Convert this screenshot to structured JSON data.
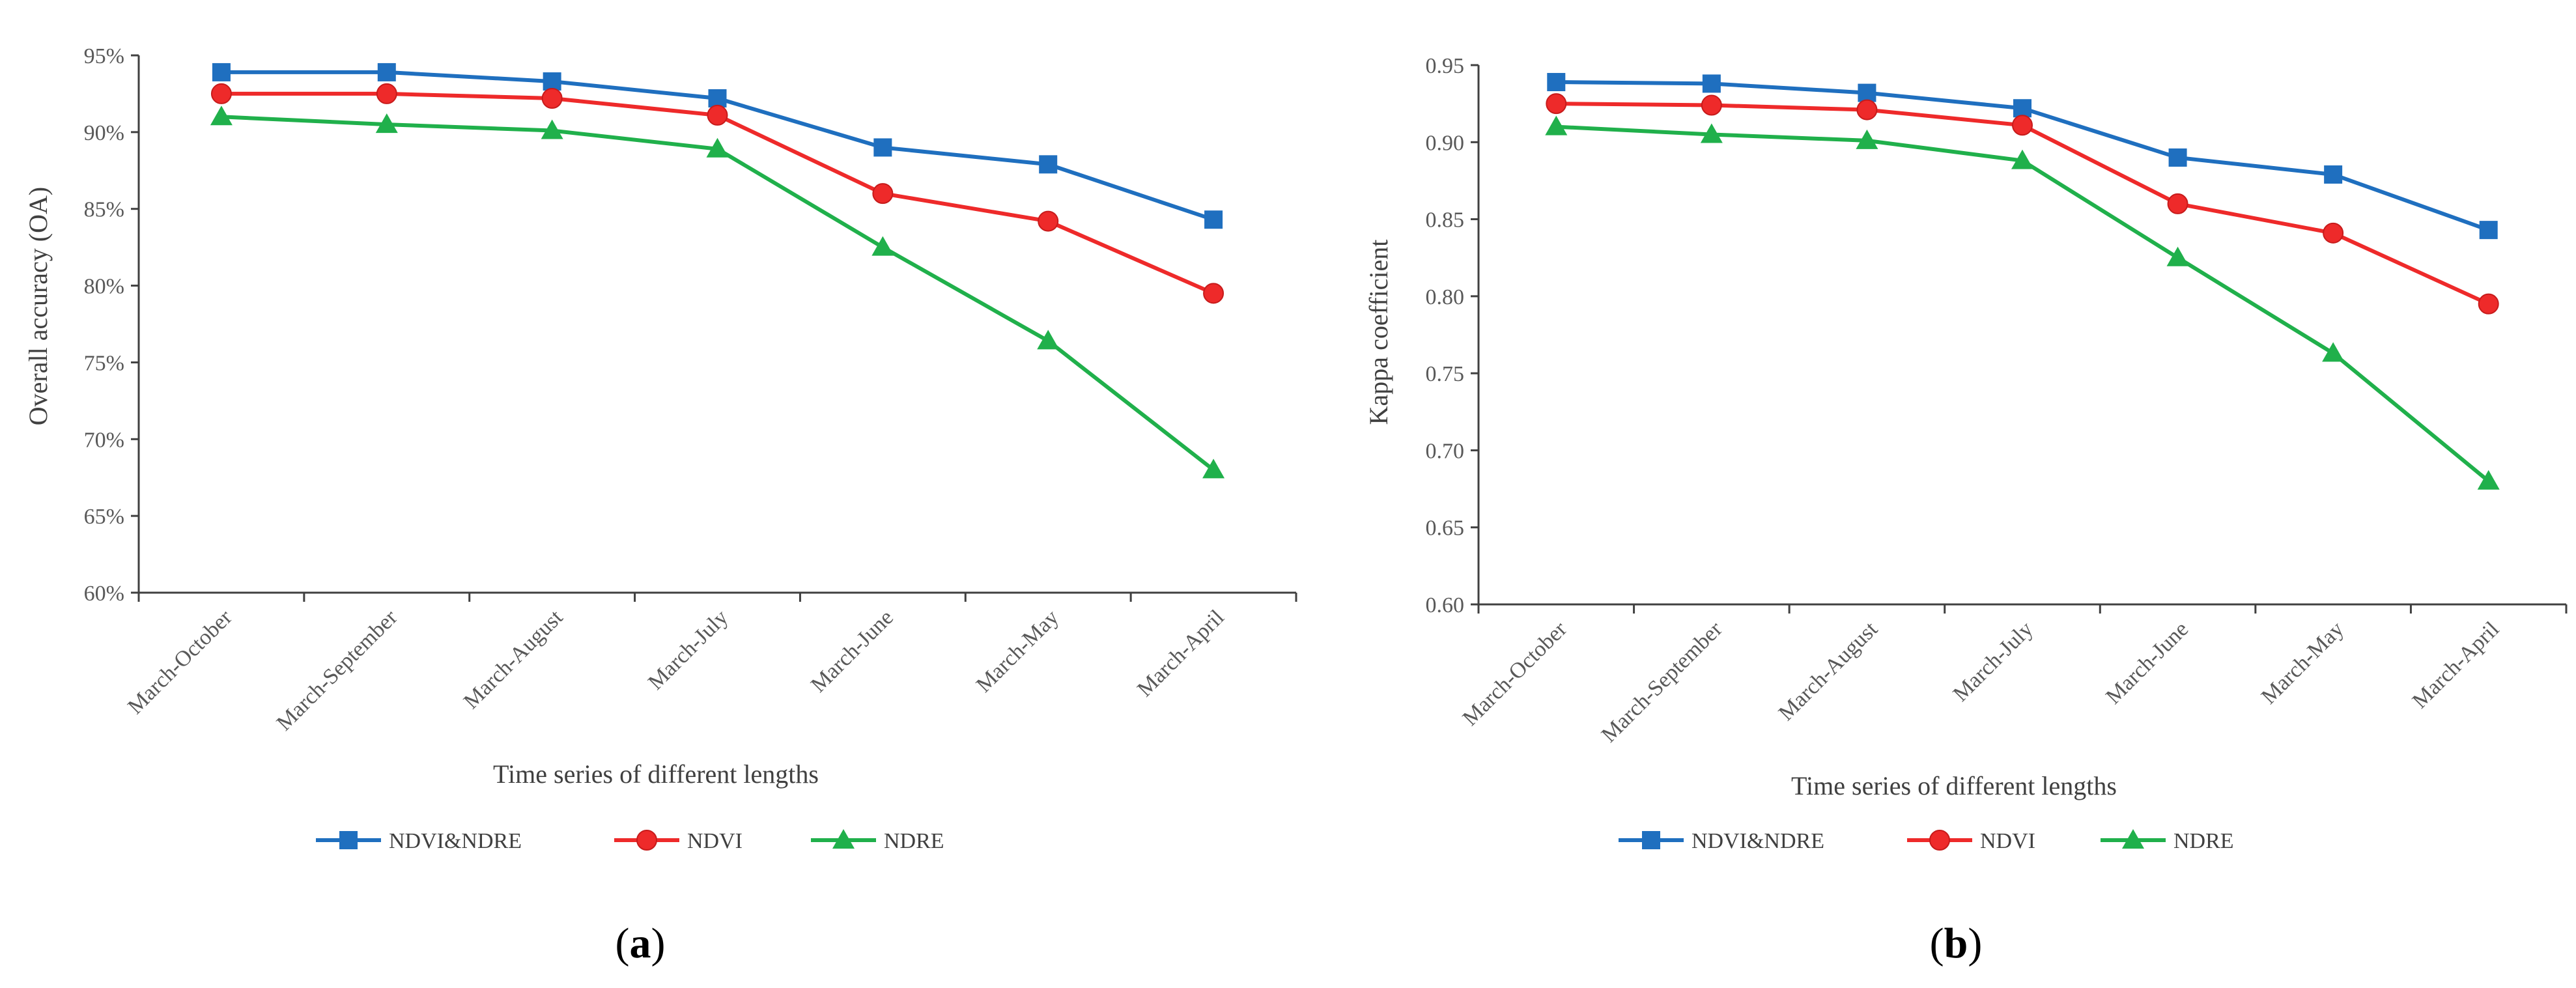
{
  "chart_data": [
    {
      "panel": "a",
      "type": "line",
      "categories": [
        "March-October",
        "March-September",
        "March-August",
        "March-July",
        "March-June",
        "March-May",
        "March-April"
      ],
      "xlabel": "Time series of different lengths",
      "ylabel": "Overall accuracy (OA)",
      "ylim": [
        60,
        95
      ],
      "yticks": [
        60,
        65,
        70,
        75,
        80,
        85,
        90,
        95
      ],
      "ytick_format": "percent",
      "grid": false,
      "legend_position": "bottom",
      "series": [
        {
          "name": "NDVI&NDRE",
          "color": "#1F6FBF",
          "marker": "square",
          "values": [
            93.9,
            93.9,
            93.3,
            92.2,
            89.0,
            87.9,
            84.3
          ]
        },
        {
          "name": "NDVI",
          "color": "#EE2A2A",
          "marker": "circle",
          "values": [
            92.5,
            92.5,
            92.2,
            91.1,
            86.0,
            84.2,
            79.5
          ]
        },
        {
          "name": "NDRE",
          "color": "#20B04B",
          "marker": "triangle",
          "values": [
            91.0,
            90.5,
            90.1,
            88.9,
            82.5,
            76.4,
            68.0
          ]
        }
      ]
    },
    {
      "panel": "b",
      "type": "line",
      "categories": [
        "March-October",
        "March-September",
        "March-August",
        "March-July",
        "March-June",
        "March-May",
        "March-April"
      ],
      "xlabel": "Time series of different lengths",
      "ylabel": "Kappa coefficient",
      "ylim": [
        0.6,
        0.95
      ],
      "yticks": [
        0.6,
        0.65,
        0.7,
        0.75,
        0.8,
        0.85,
        0.9,
        0.95
      ],
      "ytick_format": "decimal2",
      "grid": false,
      "legend_position": "bottom",
      "series": [
        {
          "name": "NDVI&NDRE",
          "color": "#1F6FBF",
          "marker": "square",
          "values": [
            0.939,
            0.938,
            0.932,
            0.922,
            0.89,
            0.879,
            0.843
          ]
        },
        {
          "name": "NDVI",
          "color": "#EE2A2A",
          "marker": "circle",
          "values": [
            0.925,
            0.924,
            0.921,
            0.911,
            0.86,
            0.841,
            0.795
          ]
        },
        {
          "name": "NDRE",
          "color": "#20B04B",
          "marker": "triangle",
          "values": [
            0.91,
            0.905,
            0.901,
            0.888,
            0.825,
            0.763,
            0.68
          ]
        }
      ]
    }
  ],
  "panel_labels": [
    {
      "open": "(",
      "letter": "a",
      "close": ")"
    },
    {
      "open": "(",
      "letter": "b",
      "close": ")"
    }
  ]
}
